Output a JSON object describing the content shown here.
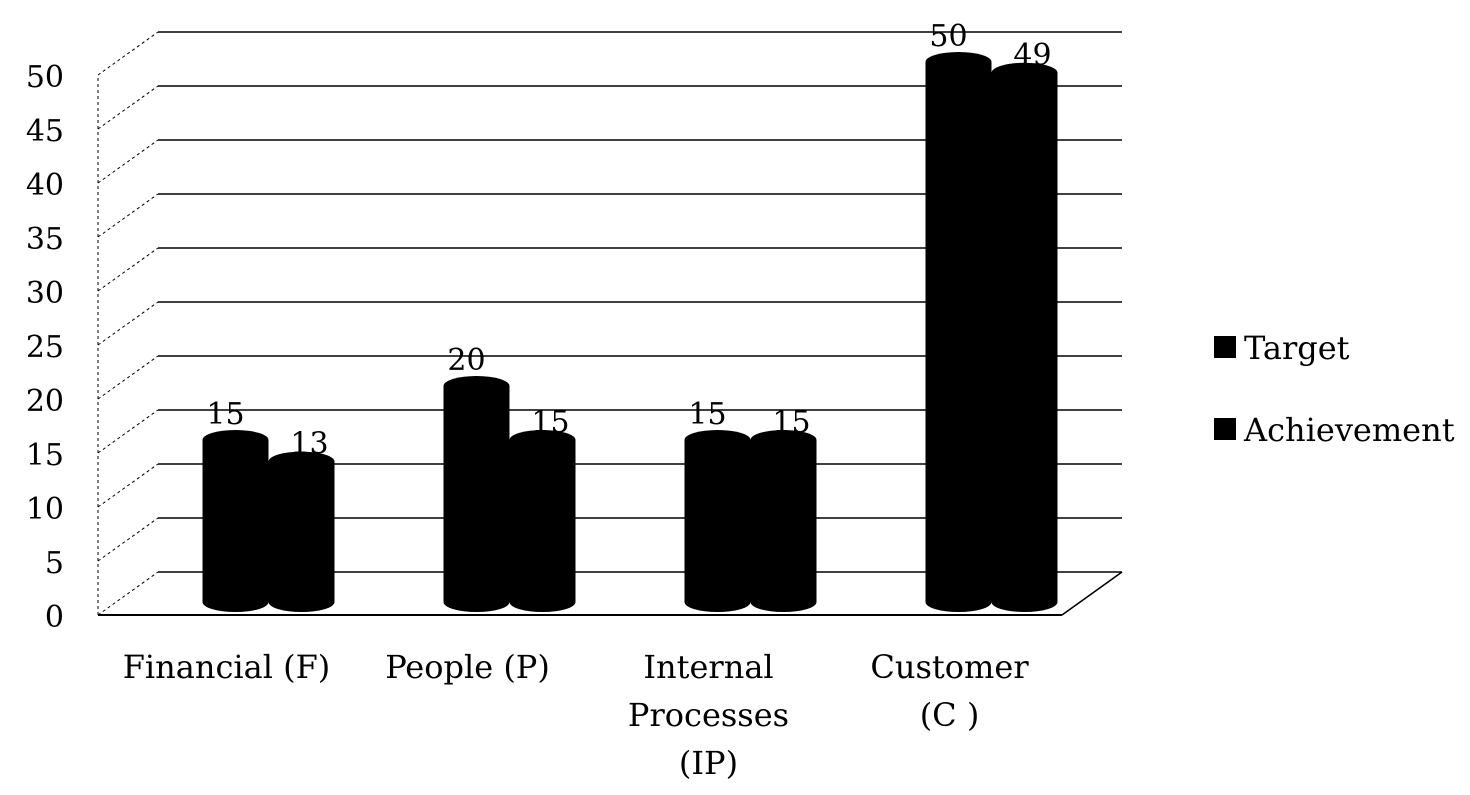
{
  "chart_data": {
    "type": "bar",
    "title": "",
    "xlabel": "",
    "ylabel": "",
    "categories": [
      "Financial (F)",
      "People (P)",
      "Internal\nProcesses\n(IP)",
      "Customer\n(C )"
    ],
    "series": [
      {
        "name": "Target",
        "values": [
          15,
          20,
          15,
          50
        ]
      },
      {
        "name": "Achievement",
        "values": [
          13,
          15,
          15,
          49
        ]
      }
    ],
    "ylim": [
      0,
      50
    ],
    "yticks": [
      0,
      5,
      10,
      15,
      20,
      25,
      30,
      35,
      40,
      45,
      50
    ],
    "grid": true,
    "legend": "right",
    "style": "3d-cylinder",
    "colors": {
      "Target": "#000000",
      "Achievement": "#000000"
    }
  }
}
